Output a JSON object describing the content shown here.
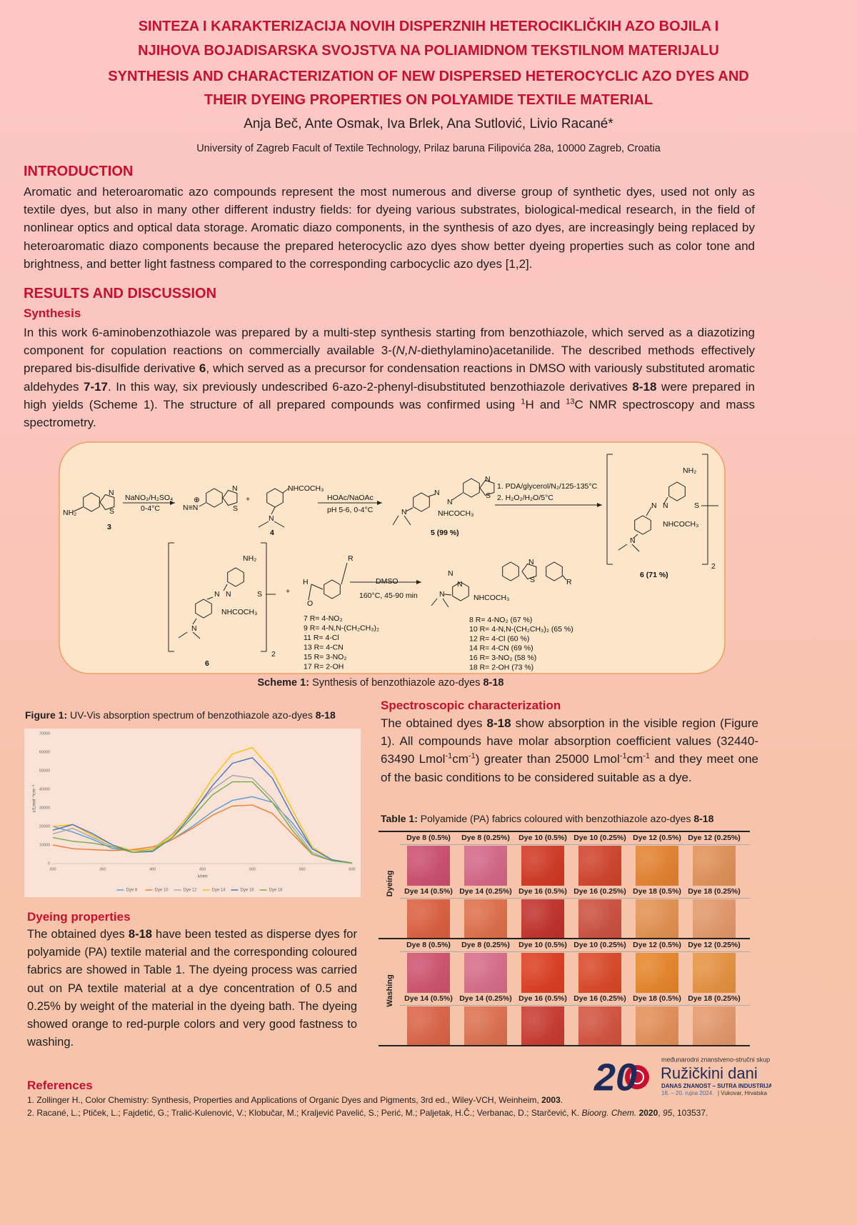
{
  "header": {
    "title_hr": [
      "SINTEZA I KARAKTERIZACIJA NOVIH DISPERZNIH HETEROCIKLIČKIH AZO BOJILA I",
      "NJIHOVA BOJADISARSKA SVOJSTVA NA POLIAMIDNOM TEKSTILNOM MATERIJALU"
    ],
    "title_en": [
      "SYNTHESIS AND CHARACTERIZATION OF NEW DISPERSED HETEROCYCLIC AZO DYES AND",
      "THEIR DYEING PROPERTIES ON POLYAMIDE TEXTILE MATERIAL"
    ],
    "authors": "Anja Beč, Ante Osmak, Iva Brlek, Ana Sutlović, Livio Racané*",
    "affiliation": "University of Zagreb Facult of Textile Technology, Prilaz baruna Filipovića 28a, 10000 Zagreb, Croatia"
  },
  "introduction": {
    "heading": "INTRODUCTION",
    "text": "Aromatic and heteroaromatic azo compounds represent the most numerous and diverse group of synthetic dyes, used not only as textile dyes, but also in many other different industry fields: for dyeing various substrates, biological-medical research, in the field of nonlinear optics and optical data storage. Aromatic diazo components, in the synthesis of azo dyes, are increasingly being replaced by heteroaromatic diazo components because the prepared heterocyclic azo dyes show better dyeing properties such as color tone and brightness, and better light fastness compared to the corresponding carbocyclic azo dyes [1,2]."
  },
  "results": {
    "heading": "RESULTS AND DISCUSSION",
    "synthesis": {
      "heading": "Synthesis",
      "text": [
        "In this work 6-aminobenzothiazole was prepared by a multi-step synthesis starting from benzothiazole, which served as a diazotizing component for copulation reactions on commercially available 3-(",
        "N,N",
        "-diethylamino)acetanilide. The described methods effectively prepared bis-disulfide derivative ",
        "6",
        ", which served as a precursor for condensation reactions in DMSO with variously substituted aromatic aldehydes ",
        "7-17",
        ". In this way, six previously undescribed 6-azo-2-phenyl-disubstituted benzothiazole derivatives ",
        "8-18",
        " were prepared in high yields (Scheme 1). The structure of all prepared compounds was confirmed using ",
        "1",
        "H and ",
        "13",
        "C NMR spectroscopy and mass spectrometry."
      ]
    }
  },
  "scheme": {
    "labels": [
      "NH₂",
      "N",
      "S",
      "3",
      "NaNO₂/H₂SO₄",
      "0-4°C",
      "N≡N",
      "⊕",
      "N",
      "S",
      "+",
      "NHCOCH₃",
      "N",
      "4",
      "HOAc/NaOAc",
      "pH 5-6, 0-4°C",
      "N",
      "N",
      "N",
      "S",
      "N",
      "NHCOCH₃",
      "5 (99 %)",
      "1. PDA/glycerol/N₂/125-135°C",
      "2. H₂O₂/H₂O/5°C",
      "NH₂",
      "S",
      "N",
      "N",
      "NHCOCH₃",
      "N",
      "6 (71 %)",
      "2",
      "NH₂",
      "S",
      "N",
      "N",
      "NHCOCH₃",
      "N",
      "6",
      "2",
      "+",
      "H",
      "O",
      "R",
      "DMSO",
      "160°C, 45-90 min",
      "N",
      "N",
      "N",
      "S",
      "N",
      "NHCOCH₃",
      "R"
    ],
    "reagents": [
      "7  R= 4-NO₂",
      "9  R= 4-N,N-(CH₂CH₃)₂",
      "11 R= 4-Cl",
      "13 R= 4-CN",
      "15 R= 3-NO₂",
      "17 R= 2-OH"
    ],
    "products": [
      "8   R= 4-NO₂ (67 %)",
      "10 R= 4-N,N-(CH₂CH₃)₂ (65 %)",
      "12 R= 4-Cl (60 %)",
      "14 R= 4-CN (69 %)",
      "16 R= 3-NO₂ (58 %)",
      "18 R= 2-OH (73 %)"
    ],
    "caption": [
      "Scheme 1:",
      " Synthesis of benzothiazole azo-dyes ",
      "8-18"
    ]
  },
  "figure1": {
    "caption": [
      "Figure 1:",
      " UV-Vis absorption spectrum of benzothiazole azo-dyes ",
      "8-18"
    ]
  },
  "chart_data": {
    "type": "line",
    "x_label": "λ/nm",
    "y_label": "ε/Lmol⁻¹cm⁻¹",
    "x": [
      300,
      320,
      340,
      360,
      380,
      400,
      420,
      440,
      460,
      480,
      500,
      520,
      540,
      560,
      580,
      600
    ],
    "xlim": [
      300,
      600
    ],
    "xticks": [
      300,
      350,
      400,
      450,
      500,
      550,
      600
    ],
    "ylim": [
      0,
      70000
    ],
    "yticks": [
      0,
      10000,
      20000,
      30000,
      40000,
      50000,
      60000,
      70000
    ],
    "grid": false,
    "series": [
      {
        "name": "Dye 8",
        "color": "#5b9bd5",
        "values": [
          20000,
          17000,
          13000,
          8000,
          7000,
          8000,
          13000,
          20000,
          28000,
          34000,
          36000,
          33000,
          22000,
          8000,
          2000,
          300
        ]
      },
      {
        "name": "Dye 10",
        "color": "#ed7d31",
        "values": [
          10000,
          8000,
          7500,
          7000,
          7500,
          9000,
          13000,
          19000,
          26000,
          31000,
          31500,
          27000,
          16000,
          5000,
          1500,
          300
        ]
      },
      {
        "name": "Dye 12",
        "color": "#a5a5a5",
        "values": [
          16000,
          19000,
          14000,
          9000,
          6000,
          8000,
          16000,
          28000,
          40000,
          47500,
          46000,
          35000,
          20000,
          6000,
          1500,
          300
        ]
      },
      {
        "name": "Dye 14",
        "color": "#ffc000",
        "values": [
          20000,
          21000,
          15000,
          10000,
          7000,
          8000,
          15000,
          29000,
          46000,
          59000,
          62500,
          50000,
          29000,
          9000,
          2000,
          300
        ]
      },
      {
        "name": "Dye 16",
        "color": "#4472c4",
        "values": [
          18000,
          21000,
          16000,
          10000,
          6000,
          6500,
          14000,
          27000,
          42000,
          54000,
          57000,
          46000,
          26000,
          8000,
          2000,
          300
        ]
      },
      {
        "name": "Dye 18",
        "color": "#70ad47",
        "values": [
          14000,
          12000,
          11000,
          9000,
          6000,
          7000,
          14000,
          25000,
          37000,
          44000,
          44000,
          33000,
          18000,
          5000,
          1500,
          300
        ]
      }
    ],
    "legend": "bottom"
  },
  "spectroscopy": {
    "heading": "Spectroscopic characterization",
    "text": [
      "The obtained dyes ",
      "8-18",
      " show absorption in the visible region (Figure 1). All compounds have molar absorption coefficient values (32440-63490 Lmol",
      "-1",
      "cm",
      "-1",
      ") greater than 25000 Lmol",
      "-1",
      "cm",
      "-1",
      " and they meet one of the basic conditions to be considered suitable as a dye."
    ]
  },
  "table1": {
    "caption": [
      "Table 1:",
      " Polyamide (PA) fabrics coloured with benzothiazole azo-dyes ",
      "8-18"
    ],
    "groups": [
      {
        "label": "Dyeing",
        "rows": [
          [
            {
              "label": "Dye 8 (0.5%)",
              "color": "#cf4f6e"
            },
            {
              "label": "Dye 8 (0.25%)",
              "color": "#d86889"
            },
            {
              "label": "Dye 10 (0.5%)",
              "color": "#d43822"
            },
            {
              "label": "Dye 10 (0.25%)",
              "color": "#d4432b"
            },
            {
              "label": "Dye 12 (0.5%)",
              "color": "#e7832f"
            },
            {
              "label": "Dye 12 (0.25%)",
              "color": "#e49358"
            }
          ],
          [
            {
              "label": "Dye 14 (0.5%)",
              "color": "#df5f3e"
            },
            {
              "label": "Dye 14 (0.25%)",
              "color": "#e2704a"
            },
            {
              "label": "Dye 16 (0.5%)",
              "color": "#c5302a"
            },
            {
              "label": "Dye 16 (0.25%)",
              "color": "#cf503f"
            },
            {
              "label": "Dye 18 (0.5%)",
              "color": "#e69350"
            },
            {
              "label": "Dye 18 (0.25%)",
              "color": "#e69a6a"
            }
          ]
        ]
      },
      {
        "label": "Washing",
        "rows": [
          [
            {
              "label": "Dye 8 (0.5%)",
              "color": "#d2536f"
            },
            {
              "label": "Dye 8 (0.25%)",
              "color": "#db6d8c"
            },
            {
              "label": "Dye 10 (0.5%)",
              "color": "#e03e20"
            },
            {
              "label": "Dye 10 (0.25%)",
              "color": "#de4827"
            },
            {
              "label": "Dye 12 (0.5%)",
              "color": "#ea872a"
            },
            {
              "label": "Dye 12 (0.25%)",
              "color": "#e99440"
            }
          ],
          [
            {
              "label": "Dye 14 (0.5%)",
              "color": "#de6446"
            },
            {
              "label": "Dye 14 (0.25%)",
              "color": "#e0714e"
            },
            {
              "label": "Dye 16 (0.5%)",
              "color": "#cc3a30"
            },
            {
              "label": "Dye 16 (0.25%)",
              "color": "#d6533e"
            },
            {
              "label": "Dye 18 (0.5%)",
              "color": "#e79158"
            },
            {
              "label": "Dye 18 (0.25%)",
              "color": "#e79a6c"
            }
          ]
        ]
      }
    ]
  },
  "dyeing": {
    "heading": "Dyeing properties",
    "text": [
      "The obtained dyes ",
      "8-18",
      " have been tested as disperse dyes for polyamide (PA) textile material and the corresponding coloured fabrics are showed in Table 1. The dyeing process was carried out on PA textile material at a dye concentration of 0.5 and 0.25% by weight of the material in the dyeing bath. The dyeing showed orange to red-purple colors and very good fastness to washing."
    ]
  },
  "references": {
    "heading": "References",
    "items": [
      [
        "1. Zollinger H., Color Chemistry: Synthesis, Properties and Applications of Organic Dyes and Pigments, 3rd ed., Wiley-VCH, Weinheim, ",
        "2003",
        "."
      ],
      [
        "2. Racané, L.; Ptiček, L.; Fajdetić, G.; Tralić-Kulenović, V.; Klobučar, M.; Kraljević Pavelić, S.; Perić, M.; Paljetak, H.Č.; Verbanac, D.; Starčević, K. ",
        "Bioorg. Chem.",
        " ",
        "2020",
        ", ",
        "95",
        ", 103537."
      ]
    ]
  },
  "logo": {
    "number": "20",
    "subtitle": "međunarodni znanstveno-stručni skup",
    "name": "Ružičkini dani",
    "motto": "DANAS ZNANOST – SUTRA INDUSTRIJA",
    "dates": "18. – 20. rujna 2024.",
    "place": "| Vukovar, Hrvatska"
  }
}
